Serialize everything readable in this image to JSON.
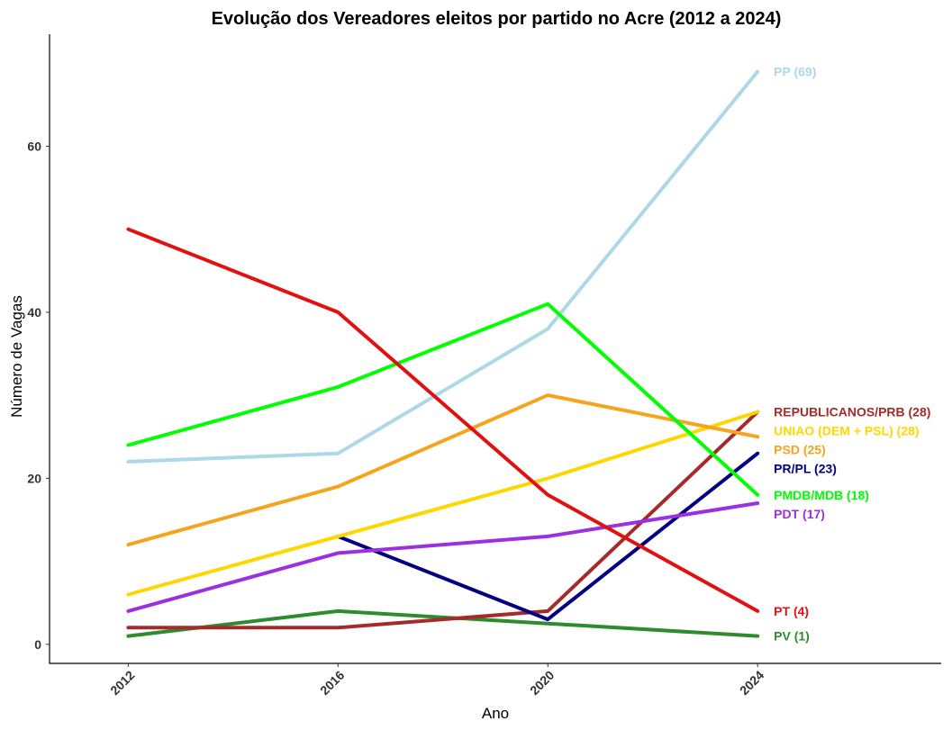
{
  "chart_data": {
    "type": "line",
    "title": "Evolução dos Vereadores eleitos por partido no Acre (2012 a 2024)",
    "xlabel": "Ano",
    "ylabel": "Número de Vagas",
    "x": [
      2012,
      2016,
      2020,
      2024
    ],
    "x_tick_labels": [
      "2012",
      "2016",
      "2020",
      "2024"
    ],
    "y_ticks": [
      0,
      20,
      40,
      60
    ],
    "y_tick_labels": [
      "0",
      "20",
      "40",
      "60"
    ],
    "xlim": [
      2010.5,
      2027.5
    ],
    "ylim": [
      -2.3,
      73.5
    ],
    "grid": false,
    "legend": "direct labels at line ends",
    "series": [
      {
        "name": "PV",
        "end_label": "PV (1)",
        "color": "#2e8b2e",
        "values": [
          1,
          4,
          2.5,
          1
        ]
      },
      {
        "name": "REPUBLICANOS/PRB",
        "end_label": "REPUBLICANOS/PRB (28)",
        "color": "#a52a2a",
        "values": [
          2,
          2,
          4,
          28
        ]
      },
      {
        "name": "PR/PL",
        "end_label": "PR/PL (23)",
        "color": "#000080",
        "values": [
          null,
          13,
          3,
          23
        ]
      },
      {
        "name": "PDT",
        "end_label": "PDT (17)",
        "color": "#9b30e0",
        "values": [
          4,
          11,
          13,
          17
        ]
      },
      {
        "name": "UNIAO (DEM + PSL)",
        "end_label": "UNIAO (DEM + PSL) (28)",
        "color": "#ffd700",
        "values": [
          6,
          13,
          20,
          28
        ]
      },
      {
        "name": "PSD",
        "end_label": "PSD (25)",
        "color": "#f5a51d",
        "values": [
          12,
          19,
          30,
          25
        ]
      },
      {
        "name": "PP",
        "end_label": "PP (69)",
        "color": "#add8e6",
        "values": [
          22,
          23,
          38,
          69
        ]
      },
      {
        "name": "PMDB/MDB",
        "end_label": "PMDB/MDB (18)",
        "color": "#00ff00",
        "values": [
          24,
          31,
          41,
          18
        ]
      },
      {
        "name": "PT",
        "end_label": "PT (4)",
        "color": "#e31010",
        "values": [
          50,
          40,
          18,
          4
        ]
      }
    ]
  }
}
